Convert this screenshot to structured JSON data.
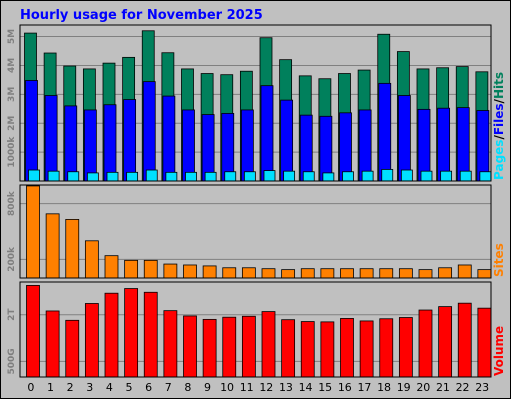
{
  "title": "Hourly usage for November 2025",
  "colors": {
    "background": "#c0c0c0",
    "hits": "#00805c",
    "files": "#0000ff",
    "pages": "#00e0ff",
    "sites": "#ff8000",
    "volume": "#ff0000",
    "title": "#0000ff",
    "sep": "#000000"
  },
  "side_labels": {
    "pages": "Pages",
    "files": "Files",
    "hits": "Hits",
    "sep": "/",
    "sites": "Sites",
    "volume": "Volume"
  },
  "chart_data": [
    {
      "type": "bar",
      "panel": "hits-files-pages",
      "categories": [
        "0",
        "1",
        "2",
        "3",
        "4",
        "5",
        "6",
        "7",
        "8",
        "9",
        "10",
        "11",
        "12",
        "13",
        "14",
        "15",
        "16",
        "17",
        "18",
        "19",
        "20",
        "21",
        "22",
        "23"
      ],
      "ytick_labels": [
        "1000k",
        "2M",
        "3M",
        "4M",
        "5M"
      ],
      "ytick_values": [
        1000000,
        2000000,
        3000000,
        4000000,
        5000000
      ],
      "ylim": [
        0,
        5400000
      ],
      "series": [
        {
          "name": "Hits",
          "values": [
            5120000,
            4430000,
            3980000,
            3880000,
            4080000,
            4280000,
            5200000,
            4440000,
            3880000,
            3720000,
            3680000,
            3800000,
            4960000,
            4200000,
            3640000,
            3540000,
            3720000,
            3840000,
            5080000,
            4480000,
            3880000,
            3920000,
            3960000,
            3780000
          ]
        },
        {
          "name": "Files",
          "values": [
            3480000,
            2960000,
            2600000,
            2460000,
            2640000,
            2820000,
            3440000,
            2940000,
            2460000,
            2300000,
            2340000,
            2460000,
            3300000,
            2800000,
            2280000,
            2240000,
            2360000,
            2460000,
            3380000,
            2960000,
            2480000,
            2520000,
            2540000,
            2440000
          ]
        },
        {
          "name": "Pages",
          "values": [
            380000,
            340000,
            320000,
            280000,
            300000,
            300000,
            380000,
            300000,
            300000,
            300000,
            320000,
            320000,
            360000,
            340000,
            320000,
            280000,
            320000,
            340000,
            400000,
            380000,
            340000,
            340000,
            340000,
            320000
          ]
        }
      ]
    },
    {
      "type": "bar",
      "panel": "sites",
      "categories": [
        "0",
        "1",
        "2",
        "3",
        "4",
        "5",
        "6",
        "7",
        "8",
        "9",
        "10",
        "11",
        "12",
        "13",
        "14",
        "15",
        "16",
        "17",
        "18",
        "19",
        "20",
        "21",
        "22",
        "23"
      ],
      "ytick_labels": [
        "200k",
        "800k"
      ],
      "ytick_values": [
        200000,
        800000
      ],
      "ylim": [
        0,
        1000000
      ],
      "series": [
        {
          "name": "Sites",
          "values": [
            990000,
            690000,
            630000,
            400000,
            240000,
            190000,
            190000,
            150000,
            140000,
            130000,
            110000,
            110000,
            100000,
            90000,
            100000,
            100000,
            100000,
            100000,
            100000,
            100000,
            90000,
            110000,
            140000,
            90000
          ]
        }
      ]
    },
    {
      "type": "bar",
      "panel": "volume",
      "categories": [
        "0",
        "1",
        "2",
        "3",
        "4",
        "5",
        "6",
        "7",
        "8",
        "9",
        "10",
        "11",
        "12",
        "13",
        "14",
        "15",
        "16",
        "17",
        "18",
        "19",
        "20",
        "21",
        "22",
        "23"
      ],
      "ytick_labels": [
        "500G",
        "2T"
      ],
      "ytick_values": [
        500,
        2000
      ],
      "ylim": [
        0,
        3050
      ],
      "series": [
        {
          "name": "Volume",
          "values": [
            2940,
            2120,
            1820,
            2360,
            2690,
            2840,
            2720,
            2130,
            1960,
            1850,
            1920,
            1950,
            2100,
            1840,
            1780,
            1770,
            1880,
            1800,
            1870,
            1910,
            2150,
            2260,
            2370,
            2210
          ]
        }
      ]
    }
  ]
}
